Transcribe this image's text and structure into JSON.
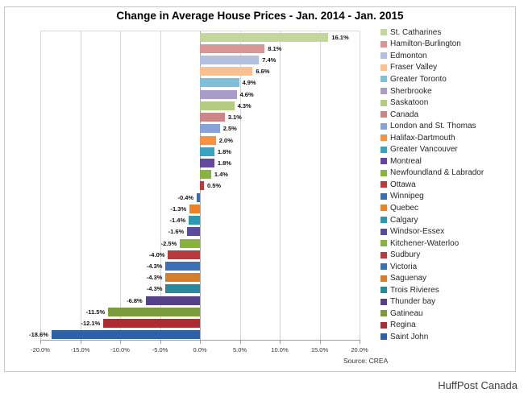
{
  "title": "Change in Average House Prices - Jan. 2014 - Jan. 2015",
  "source_note": "Source: CREA",
  "credit": "HuffPost Canada",
  "chart_data": {
    "type": "bar",
    "orientation": "horizontal",
    "title": "Change in Average House Prices - Jan. 2014 - Jan. 2015",
    "xlabel": "",
    "ylabel": "",
    "xlim": [
      -20,
      20
    ],
    "grid": true,
    "legend_position": "right",
    "x_ticks": [
      "-20.0%",
      "-15.0%",
      "-10.0%",
      "-5.0%",
      "0.0%",
      "5.0%",
      "10.0%",
      "15.0%",
      "20.0%"
    ],
    "x_tick_values": [
      -20,
      -15,
      -10,
      -5,
      0,
      5,
      10,
      15,
      20
    ],
    "categories": [
      "St. Catharines",
      "Hamilton-Burlington",
      "Edmonton",
      "Fraser Valley",
      "Greater Toronto",
      "Sherbrooke",
      "Saskatoon",
      "Canada",
      "London and St. Thomas",
      "Halifax-Dartmouth",
      "Greater Vancouver",
      "Montreal",
      "Newfoundland & Labrador",
      "Ottawa",
      "Winnipeg",
      "Quebec",
      "Calgary",
      "Windsor-Essex",
      "Kitchener-Waterloo",
      "Sudbury",
      "Victoria",
      "Saguenay",
      "Trois Rivieres",
      "Thunder bay",
      "Gatineau",
      "Regina",
      "Saint John"
    ],
    "values": [
      16.1,
      8.1,
      7.4,
      6.6,
      4.9,
      4.6,
      4.3,
      3.1,
      2.5,
      2.0,
      1.8,
      1.8,
      1.4,
      0.5,
      -0.4,
      -1.3,
      -1.4,
      -1.6,
      -2.5,
      -4.0,
      -4.3,
      -4.3,
      -4.3,
      -6.8,
      -11.5,
      -12.1,
      -18.6
    ],
    "value_labels": [
      "16.1%",
      "8.1%",
      "7.4%",
      "6.6%",
      "4.9%",
      "4.6%",
      "4.3%",
      "3.1%",
      "2.5%",
      "2.0%",
      "1.8%",
      "1.8%",
      "1.4%",
      "0.5%",
      "-0.4%",
      "-1.3%",
      "-1.4%",
      "-1.6%",
      "-2.5%",
      "-4.0%",
      "-4.3%",
      "-4.3%",
      "-4.3%",
      "-6.8%",
      "-11.5%",
      "-12.1%",
      "-18.6%"
    ],
    "colors": [
      "#c3d69b",
      "#d99694",
      "#b1c0e0",
      "#fac08f",
      "#7fc0d8",
      "#a89cc8",
      "#b3cc82",
      "#cd8688",
      "#87a3d8",
      "#f79240",
      "#39a3bf",
      "#65489d",
      "#87b33e",
      "#bb3a3e",
      "#3b6db3",
      "#ee8123",
      "#2b9aad",
      "#5c4a9c",
      "#88b43e",
      "#b93a3d",
      "#3b70b6",
      "#d67e2a",
      "#28889d",
      "#55418b",
      "#7c9b3a",
      "#a52f33",
      "#2e61a5"
    ]
  }
}
